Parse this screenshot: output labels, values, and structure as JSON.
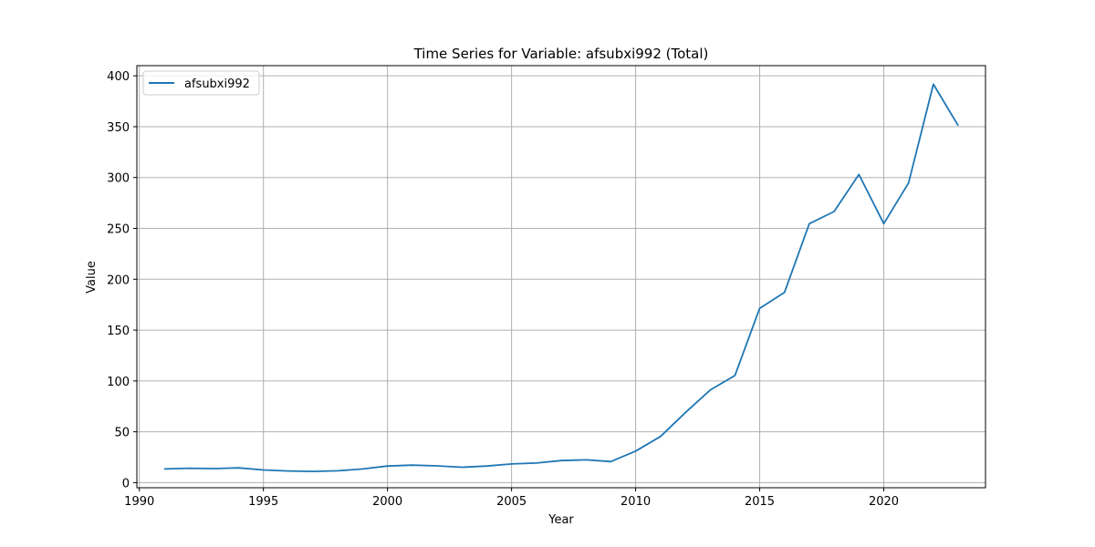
{
  "chart_data": {
    "type": "line",
    "title": "Time Series for Variable: afsubxi992 (Total)",
    "xlabel": "Year",
    "ylabel": "Value",
    "xlim": [
      1989.9,
      2024.1
    ],
    "ylim": [
      -5,
      410
    ],
    "x_ticks": [
      1990,
      1995,
      2000,
      2005,
      2010,
      2015,
      2020
    ],
    "y_ticks": [
      0,
      50,
      100,
      150,
      200,
      250,
      300,
      350,
      400
    ],
    "grid": true,
    "legend_position": "top-left",
    "series": [
      {
        "name": "afsubxi992",
        "color": "#1f77b4",
        "x": [
          1991,
          1992,
          1993,
          1994,
          1995,
          1996,
          1997,
          1998,
          1999,
          2000,
          2001,
          2002,
          2003,
          2004,
          2005,
          2006,
          2007,
          2008,
          2009,
          2010,
          2011,
          2012,
          2013,
          2014,
          2015,
          2016,
          2017,
          2018,
          2019,
          2020,
          2021,
          2022,
          2023
        ],
        "values": [
          13.5,
          14.2,
          13.8,
          14.5,
          12.5,
          11.5,
          11.0,
          11.7,
          13.5,
          16.3,
          17.2,
          16.5,
          15.2,
          16.3,
          18.4,
          19.3,
          21.7,
          22.4,
          20.7,
          31.0,
          45.4,
          68.8,
          91.0,
          105.3,
          171.4,
          187.0,
          254.6,
          266.6,
          303.0,
          254.7,
          294.6,
          391.7,
          351.0
        ]
      }
    ]
  }
}
